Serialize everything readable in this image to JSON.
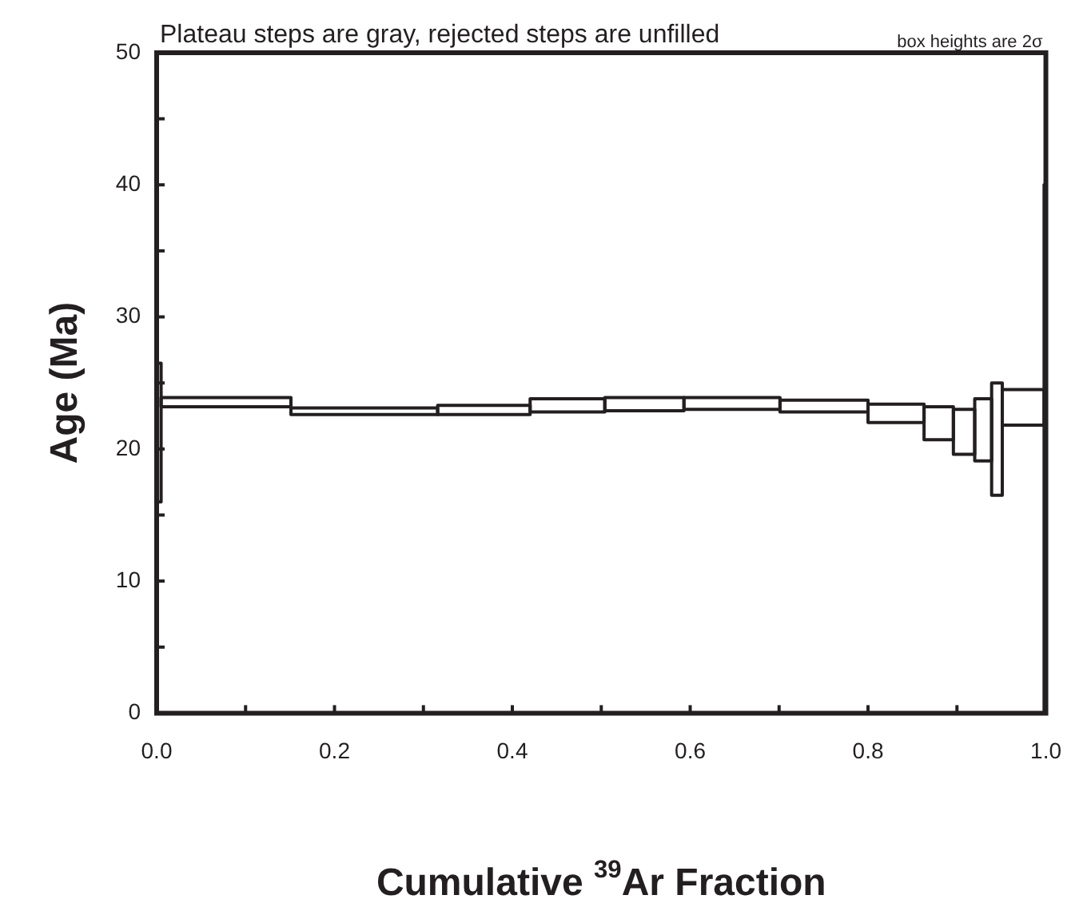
{
  "chart_data": {
    "type": "bar",
    "title": "Plateau steps are gray, rejected steps are unfilled",
    "annotations": [
      "box heights are 2σ"
    ],
    "xlabel": "Cumulative $^{39}$Ar Fraction",
    "ylabel": "Age (Ma)",
    "x": [
      0.0025,
      0.078,
      0.2335,
      0.368,
      0.462,
      0.5485,
      0.647,
      0.7505,
      0.8315,
      0.8795,
      0.908,
      0.9295,
      0.945,
      0.9745,
      0.999
    ],
    "base": [
      16.0,
      23.2,
      22.6,
      22.6,
      22.8,
      22.9,
      23.0,
      22.8,
      22.0,
      20.7,
      19.6,
      19.1,
      16.5,
      21.8,
      0
    ],
    "values": [
      10.5,
      0.7,
      0.5,
      0.7,
      1.0,
      1.0,
      0.9,
      0.9,
      1.4,
      2.5,
      3.4,
      4.7,
      8.5,
      2.7,
      40
    ],
    "color": "#231f20",
    "xlim": [
      0,
      1
    ],
    "xticks": [
      {
        "value": 0,
        "label": "0.0"
      },
      {
        "value": 0.1,
        "label": null
      },
      {
        "value": 0.2,
        "label": "0.2"
      },
      {
        "value": 0.3,
        "label": null
      },
      {
        "value": 0.4,
        "label": "0.4"
      },
      {
        "value": 0.5,
        "label": null
      },
      {
        "value": 0.6,
        "label": "0.6"
      },
      {
        "value": 0.7,
        "label": null
      },
      {
        "value": 0.8,
        "label": "0.8"
      },
      {
        "value": 0.9,
        "label": null
      },
      {
        "value": 1,
        "label": "1.0"
      }
    ],
    "ylim": [
      0,
      50
    ],
    "yticks": [
      0,
      {
        "value": 5,
        "label": null
      },
      10,
      {
        "value": 15,
        "label": null
      },
      20,
      {
        "value": 25,
        "label": null
      },
      30,
      {
        "value": 35,
        "label": null
      },
      40,
      {
        "value": 45,
        "label": null
      },
      50
    ],
    "grid": false,
    "legend": false
  }
}
